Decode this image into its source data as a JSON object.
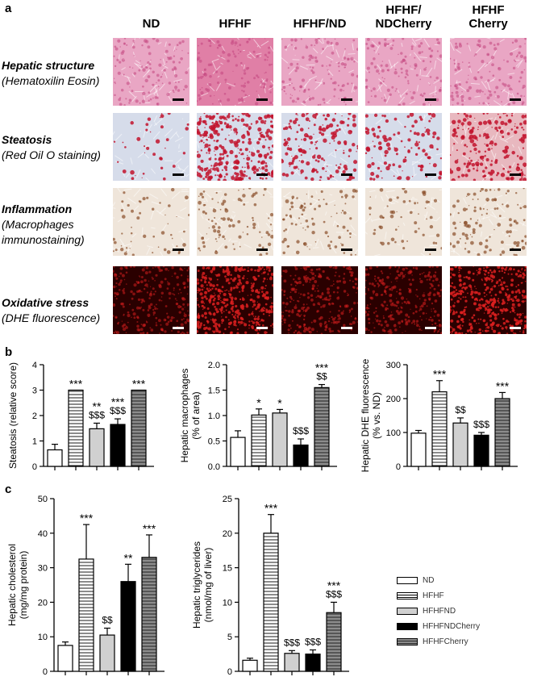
{
  "panel_a": {
    "letter": "a",
    "columns": [
      "ND",
      "HFHF",
      "HFHF/ND",
      "HFHF/\nNDCherry",
      "HFHF\nCherry"
    ],
    "rows": [
      {
        "title": "Hepatic structure",
        "subtitle": "(Hematoxilin Eosin)",
        "stain": "he"
      },
      {
        "title": "Steatosis",
        "subtitle": "(Red Oil O staining)",
        "stain": "oro"
      },
      {
        "title": "Inflammation",
        "subtitle": "(Macrophages\nimmunostaining)",
        "stain": "ihc"
      },
      {
        "title": "Oxidative stress",
        "subtitle": "(DHE fluorescence)",
        "stain": "dhe"
      }
    ]
  },
  "panel_b": {
    "letter": "b"
  },
  "panel_c": {
    "letter": "c"
  },
  "colors": {
    "he_base": "#e9a6c4",
    "he_dark": "#c2447d",
    "oro_base": "#d6dcea",
    "oro_red": "#c2132d",
    "ihc_base": "#efe5da",
    "ihc_brown": "#8a4e2a",
    "dhe_base": "#2a0000",
    "dhe_red": "#e02020"
  },
  "legend": [
    "ND",
    "HFHF",
    "HFHFND",
    "HFHFNDCherry",
    "HFHFCherry"
  ],
  "chart_data": [
    {
      "type": "bar",
      "ylabel": "Steatosis (relative score)",
      "ylim": [
        0,
        4
      ],
      "yticks": [
        0,
        1,
        2,
        3,
        4
      ],
      "categories": [
        "ND",
        "HFHF",
        "HFHFND",
        "HFHFNDCherry",
        "HFHFCherry"
      ],
      "values": [
        0.65,
        3.0,
        1.48,
        1.65,
        3.0
      ],
      "errors": [
        0.22,
        0,
        0.22,
        0.22,
        0
      ],
      "annotations": [
        "",
        "***",
        "**\n$$$",
        "***\n$$$",
        "***"
      ]
    },
    {
      "type": "bar",
      "ylabel": "Hepatic macrophages\n(% of area)",
      "ylim": [
        0,
        2.0
      ],
      "yticks": [
        "0.0",
        "0.5",
        "1.0",
        "1.5",
        "2.0"
      ],
      "categories": [
        "ND",
        "HFHF",
        "HFHFND",
        "HFHFNDCherry",
        "HFHFCherry"
      ],
      "values": [
        0.57,
        1.01,
        1.05,
        0.42,
        1.55
      ],
      "errors": [
        0.13,
        0.12,
        0.07,
        0.12,
        0.06
      ],
      "annotations": [
        "",
        "*",
        "*",
        "$$$",
        "***\n$$"
      ]
    },
    {
      "type": "bar",
      "ylabel": "Hepatic DHE fluorescence\n(% vs. ND)",
      "ylim": [
        0,
        300
      ],
      "yticks": [
        0,
        100,
        200,
        300
      ],
      "categories": [
        "ND",
        "HFHF",
        "HFHFND",
        "HFHFNDCherry",
        "HFHFCherry"
      ],
      "values": [
        98,
        220,
        128,
        92,
        200
      ],
      "errors": [
        8,
        33,
        15,
        8,
        18
      ],
      "annotations": [
        "",
        "***",
        "$$",
        "$$$",
        "***"
      ]
    },
    {
      "type": "bar",
      "ylabel": "Hepatic cholesterol\n(mg/mg protein)",
      "ylim": [
        0,
        50
      ],
      "yticks": [
        0,
        10,
        20,
        30,
        40,
        50
      ],
      "categories": [
        "ND",
        "HFHF",
        "HFHFND",
        "HFHFNDCherry",
        "HFHFCherry"
      ],
      "values": [
        7.5,
        32.5,
        10.5,
        26,
        33
      ],
      "errors": [
        1,
        10,
        2,
        5,
        6.5
      ],
      "annotations": [
        "",
        "***",
        "$$",
        "**",
        "***"
      ]
    },
    {
      "type": "bar",
      "ylabel": "Hepatic triglycerides\n(nmol/mg of liver)",
      "ylim": [
        0,
        25
      ],
      "yticks": [
        0,
        5,
        10,
        15,
        20,
        25
      ],
      "categories": [
        "ND",
        "HFHF",
        "HFHFND",
        "HFHFNDCherry",
        "HFHFCherry"
      ],
      "values": [
        1.6,
        20,
        2.6,
        2.5,
        8.5
      ],
      "errors": [
        0.3,
        2.7,
        0.4,
        0.6,
        1.5
      ],
      "annotations": [
        "",
        "***",
        "$$$",
        "$$$",
        "***\n$$$"
      ]
    }
  ]
}
